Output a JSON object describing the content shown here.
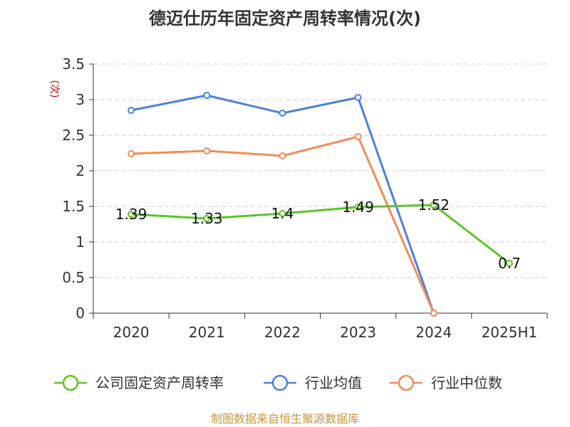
{
  "chart_data": {
    "type": "line",
    "title": "德迈仕历年固定资产周转率情况(次)",
    "ylabel": "(次)",
    "categories": [
      "2020",
      "2021",
      "2022",
      "2023",
      "2024",
      "2025H1"
    ],
    "ylim": [
      0,
      3.5
    ],
    "yticks": [
      "0",
      "0.5",
      "1",
      "1.5",
      "2",
      "2.5",
      "3",
      "3.5"
    ],
    "grid": true,
    "legend_position": "bottom",
    "series": [
      {
        "name": "公司固定资产周转率",
        "color": "#5cc526",
        "values": [
          1.39,
          1.33,
          1.4,
          1.49,
          1.52,
          0.7
        ],
        "labels": [
          "1.39",
          "1.33",
          "1.4",
          "1.49",
          "1.52",
          "0.7"
        ]
      },
      {
        "name": "行业均值",
        "color": "#4e80d8",
        "values": [
          2.85,
          3.06,
          2.81,
          3.03,
          0,
          null
        ]
      },
      {
        "name": "行业中位数",
        "color": "#f28c5a",
        "values": [
          2.24,
          2.28,
          2.21,
          2.48,
          0,
          null
        ]
      }
    ],
    "source": "制图数据来自恒生聚源数据库"
  }
}
